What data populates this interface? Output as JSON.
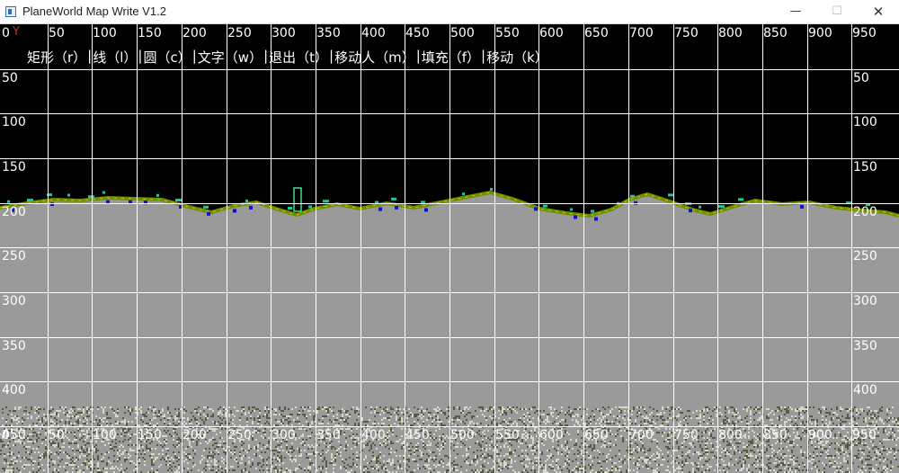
{
  "window": {
    "title": "PlaneWorld Map Write V1.2",
    "minimize_glyph": "—",
    "maximize_glyph": "☐",
    "close_glyph": "✕"
  },
  "axis": {
    "y_marker": "Y",
    "x_ticks": [
      "0",
      "50",
      "100",
      "150",
      "200",
      "250",
      "300",
      "350",
      "400",
      "450",
      "500",
      "550",
      "600",
      "650",
      "700",
      "750",
      "800",
      "850",
      "900",
      "950"
    ],
    "y_ticks": [
      "50",
      "100",
      "150",
      "200",
      "250",
      "300",
      "350",
      "400",
      "450"
    ]
  },
  "menu": {
    "items": [
      "矩形（r）",
      "线（l）",
      "圆（c）",
      "文字（w）",
      "退出（t）",
      "移动人（m）",
      "填充（f）",
      "移动（k）"
    ],
    "separator": "|"
  },
  "colors": {
    "sky": "#000000",
    "ground": "#9a9a9a",
    "grid": "#ffffff",
    "grass": "#6e8f00",
    "grass_highlight": "#c8c800",
    "plants": "#19c8a0",
    "blocks": "#1010d0",
    "gravel_dark": "#5a5a40",
    "gravel_light": "#d8d8c8"
  }
}
